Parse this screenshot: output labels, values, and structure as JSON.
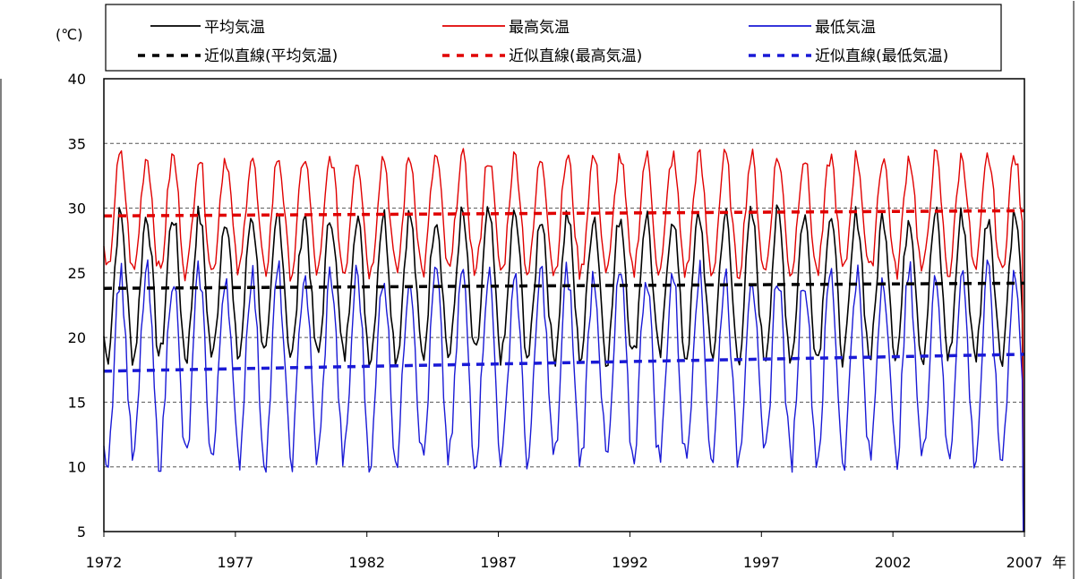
{
  "chart_data": {
    "type": "line",
    "title": "",
    "ylabel": "(℃)",
    "xlabel": "年",
    "xlim": [
      1972,
      2007
    ],
    "ylim": [
      5,
      40
    ],
    "x_ticks": [
      "1972",
      "1977",
      "1982",
      "1987",
      "1992",
      "1997",
      "2002",
      "2007"
    ],
    "y_ticks": [
      "5",
      "10",
      "15",
      "20",
      "25",
      "30",
      "35",
      "40"
    ],
    "grid": "horizontal dashed",
    "legend_position": "top",
    "series": [
      {
        "name": "平均気温",
        "color": "#000000",
        "style": "solid",
        "x_start": 1972,
        "x_end": 2007,
        "mean": 24.0,
        "amplitude": 5.5,
        "period_years": 1
      },
      {
        "name": "最高気温",
        "color": "#e00000",
        "style": "solid",
        "x_start": 1972,
        "x_end": 2007,
        "mean": 29.5,
        "amplitude": 4.5,
        "period_years": 1
      },
      {
        "name": "最低気温",
        "color": "#1a1ad6",
        "style": "solid",
        "x_start": 1972,
        "x_end": 2007,
        "mean": 17.8,
        "amplitude": 7.2,
        "period_years": 1
      },
      {
        "name": "近似直線(平均気温)",
        "color": "#000000",
        "style": "dashed",
        "x": [
          1972,
          2007
        ],
        "y": [
          23.8,
          24.2
        ]
      },
      {
        "name": "近似直線(最高気温)",
        "color": "#e00000",
        "style": "dashed",
        "x": [
          1972,
          2007
        ],
        "y": [
          29.4,
          29.8
        ]
      },
      {
        "name": "近似直線(最低気温)",
        "color": "#1a1ad6",
        "style": "dashed",
        "x": [
          1972,
          2007
        ],
        "y": [
          17.4,
          18.7
        ]
      }
    ]
  }
}
